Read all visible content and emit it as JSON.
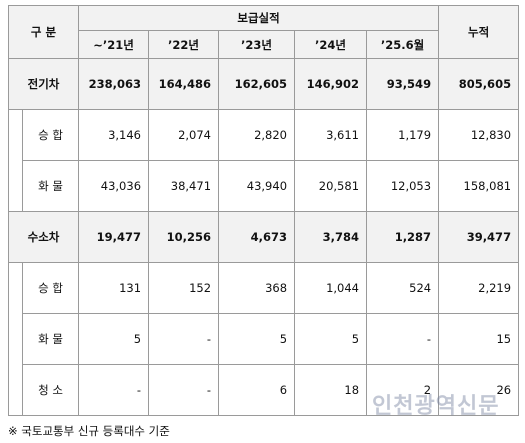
{
  "table": {
    "header": {
      "category": "구 분",
      "group": "보급실적",
      "total": "누적",
      "periods": [
        "~’21년",
        "’22년",
        "’23년",
        "’24년",
        "’25.6월"
      ]
    },
    "groups": [
      {
        "label": "전기차",
        "values": [
          "238,063",
          "164,486",
          "162,605",
          "146,902",
          "93,549",
          "805,605"
        ],
        "subrows": [
          {
            "label": "승 합",
            "values": [
              "3,146",
              "2,074",
              "2,820",
              "3,611",
              "1,179",
              "12,830"
            ]
          },
          {
            "label": "화 물",
            "values": [
              "43,036",
              "38,471",
              "43,940",
              "20,581",
              "12,053",
              "158,081"
            ]
          }
        ]
      },
      {
        "label": "수소차",
        "values": [
          "19,477",
          "10,256",
          "4,673",
          "3,784",
          "1,287",
          "39,477"
        ],
        "subrows": [
          {
            "label": "승 합",
            "values": [
              "131",
              "152",
              "368",
              "1,044",
              "524",
              "2,219"
            ]
          },
          {
            "label": "화 물",
            "values": [
              "5",
              "-",
              "5",
              "5",
              "-",
              "15"
            ]
          },
          {
            "label": "청 소",
            "values": [
              "-",
              "-",
              "6",
              "18",
              "2",
              "26"
            ]
          }
        ]
      }
    ]
  },
  "footnote": "※ 국토교통부 신규 등록대수 기준",
  "watermark": "인천광역신문"
}
